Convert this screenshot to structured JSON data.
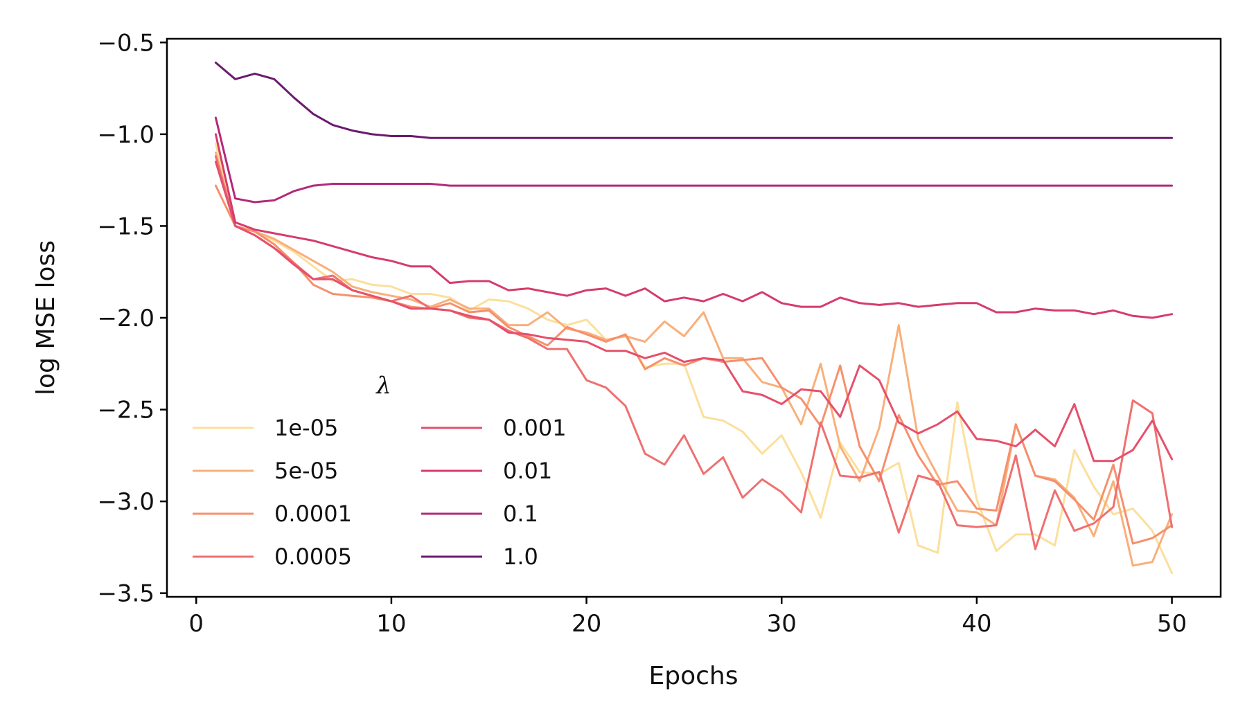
{
  "chart_data": {
    "type": "line",
    "title": "",
    "xlabel": "Epochs",
    "ylabel": "log MSE loss",
    "xlim": [
      -1.5,
      52.5
    ],
    "ylim": [
      -3.52,
      -0.48
    ],
    "xticks": [
      0,
      10,
      20,
      30,
      40,
      50
    ],
    "yticks": [
      -0.5,
      -1.0,
      -1.5,
      -2.0,
      -2.5,
      -3.0,
      -3.5
    ],
    "ytick_labels": [
      "−0.5",
      "−1.0",
      "−1.5",
      "−2.0",
      "−2.5",
      "−3.0",
      "−3.5"
    ],
    "grid": false,
    "legend": {
      "title": "λ",
      "location": "lower-left",
      "columns": 2
    },
    "x": [
      1,
      2,
      3,
      4,
      5,
      6,
      7,
      8,
      9,
      10,
      11,
      12,
      13,
      14,
      15,
      16,
      17,
      18,
      19,
      20,
      21,
      22,
      23,
      24,
      25,
      26,
      27,
      28,
      29,
      30,
      31,
      32,
      33,
      34,
      35,
      36,
      37,
      38,
      39,
      40,
      41,
      42,
      43,
      44,
      45,
      46,
      47,
      48,
      49,
      50
    ],
    "series": [
      {
        "name": "1e-05",
        "color": "#fbdf9c",
        "values": [
          -1.05,
          -1.5,
          -1.53,
          -1.58,
          -1.64,
          -1.72,
          -1.8,
          -1.79,
          -1.82,
          -1.83,
          -1.87,
          -1.87,
          -1.89,
          -1.96,
          -1.9,
          -1.91,
          -1.95,
          -2.01,
          -2.04,
          -2.01,
          -2.12,
          -2.1,
          -2.27,
          -2.25,
          -2.25,
          -2.54,
          -2.56,
          -2.62,
          -2.74,
          -2.64,
          -2.84,
          -3.09,
          -2.68,
          -2.84,
          -2.85,
          -2.79,
          -3.24,
          -3.28,
          -2.46,
          -2.99,
          -3.27,
          -3.18,
          -3.18,
          -3.24,
          -2.72,
          -2.92,
          -3.07,
          -3.04,
          -3.16,
          -3.39
        ]
      },
      {
        "name": "5e-05",
        "color": "#f9af7a",
        "values": [
          -1.1,
          -1.5,
          -1.53,
          -1.57,
          -1.63,
          -1.69,
          -1.75,
          -1.83,
          -1.86,
          -1.88,
          -1.9,
          -1.94,
          -1.9,
          -1.95,
          -1.95,
          -2.04,
          -2.04,
          -1.97,
          -2.06,
          -2.08,
          -2.12,
          -2.1,
          -2.13,
          -2.02,
          -2.1,
          -1.97,
          -2.22,
          -2.22,
          -2.35,
          -2.38,
          -2.58,
          -2.25,
          -2.7,
          -2.89,
          -2.6,
          -2.04,
          -2.66,
          -2.86,
          -3.05,
          -3.06,
          -3.13,
          -2.58,
          -2.86,
          -2.88,
          -2.98,
          -3.19,
          -2.89,
          -3.35,
          -3.33,
          -3.07
        ]
      },
      {
        "name": "0.0001",
        "color": "#f6906c",
        "values": [
          -1.28,
          -1.5,
          -1.53,
          -1.6,
          -1.7,
          -1.82,
          -1.87,
          -1.88,
          -1.89,
          -1.91,
          -1.94,
          -1.95,
          -1.92,
          -1.97,
          -1.96,
          -2.05,
          -2.1,
          -2.15,
          -2.05,
          -2.09,
          -2.13,
          -2.09,
          -2.28,
          -2.22,
          -2.26,
          -2.22,
          -2.24,
          -2.23,
          -2.22,
          -2.38,
          -2.44,
          -2.59,
          -2.26,
          -2.7,
          -2.89,
          -2.53,
          -2.75,
          -2.91,
          -2.89,
          -3.04,
          -3.05,
          -2.58,
          -2.86,
          -2.89,
          -2.99,
          -3.1,
          -2.8,
          -3.23,
          -3.2,
          -3.13
        ]
      },
      {
        "name": "0.0005",
        "color": "#ef7070",
        "values": [
          -1.12,
          -1.5,
          -1.55,
          -1.62,
          -1.7,
          -1.79,
          -1.77,
          -1.85,
          -1.88,
          -1.91,
          -1.88,
          -1.95,
          -1.96,
          -2.0,
          -2.01,
          -2.07,
          -2.11,
          -2.17,
          -2.17,
          -2.34,
          -2.38,
          -2.48,
          -2.74,
          -2.8,
          -2.64,
          -2.85,
          -2.76,
          -2.98,
          -2.88,
          -2.95,
          -3.06,
          -2.57,
          -2.86,
          -2.87,
          -2.84,
          -3.17,
          -2.86,
          -2.89,
          -3.13,
          -3.14,
          -3.13,
          -2.75,
          -3.26,
          -2.94,
          -3.16,
          -3.12,
          -3.03,
          -2.45,
          -2.52,
          -3.14
        ]
      },
      {
        "name": "0.001",
        "color": "#e5506b",
        "values": [
          -1.15,
          -1.5,
          -1.55,
          -1.62,
          -1.71,
          -1.79,
          -1.79,
          -1.85,
          -1.88,
          -1.91,
          -1.95,
          -1.95,
          -1.96,
          -1.99,
          -2.01,
          -2.08,
          -2.09,
          -2.11,
          -2.12,
          -2.13,
          -2.18,
          -2.18,
          -2.22,
          -2.19,
          -2.24,
          -2.22,
          -2.23,
          -2.4,
          -2.42,
          -2.47,
          -2.39,
          -2.4,
          -2.54,
          -2.26,
          -2.34,
          -2.57,
          -2.63,
          -2.58,
          -2.51,
          -2.66,
          -2.67,
          -2.7,
          -2.61,
          -2.7,
          -2.47,
          -2.78,
          -2.78,
          -2.72,
          -2.56,
          -2.77
        ]
      },
      {
        "name": "0.01",
        "color": "#d53c6b",
        "values": [
          -1.0,
          -1.48,
          -1.52,
          -1.54,
          -1.56,
          -1.58,
          -1.61,
          -1.64,
          -1.67,
          -1.69,
          -1.72,
          -1.72,
          -1.81,
          -1.8,
          -1.8,
          -1.85,
          -1.84,
          -1.86,
          -1.88,
          -1.85,
          -1.84,
          -1.88,
          -1.84,
          -1.91,
          -1.89,
          -1.91,
          -1.87,
          -1.91,
          -1.86,
          -1.92,
          -1.94,
          -1.94,
          -1.89,
          -1.92,
          -1.93,
          -1.92,
          -1.94,
          -1.93,
          -1.92,
          -1.92,
          -1.97,
          -1.97,
          -1.95,
          -1.96,
          -1.96,
          -1.98,
          -1.96,
          -1.99,
          -2.0,
          -1.98
        ]
      },
      {
        "name": "0.1",
        "color": "#b3297a",
        "values": [
          -0.91,
          -1.35,
          -1.37,
          -1.36,
          -1.31,
          -1.28,
          -1.27,
          -1.27,
          -1.27,
          -1.27,
          -1.27,
          -1.27,
          -1.28,
          -1.28,
          -1.28,
          -1.28,
          -1.28,
          -1.28,
          -1.28,
          -1.28,
          -1.28,
          -1.28,
          -1.28,
          -1.28,
          -1.28,
          -1.28,
          -1.28,
          -1.28,
          -1.28,
          -1.28,
          -1.28,
          -1.28,
          -1.28,
          -1.28,
          -1.28,
          -1.28,
          -1.28,
          -1.28,
          -1.28,
          -1.28,
          -1.28,
          -1.28,
          -1.28,
          -1.28,
          -1.28,
          -1.28,
          -1.28,
          -1.28,
          -1.28,
          -1.28
        ]
      },
      {
        "name": "1.0",
        "color": "#6b1a6e",
        "values": [
          -0.61,
          -0.7,
          -0.67,
          -0.7,
          -0.8,
          -0.89,
          -0.95,
          -0.98,
          -1.0,
          -1.01,
          -1.01,
          -1.02,
          -1.02,
          -1.02,
          -1.02,
          -1.02,
          -1.02,
          -1.02,
          -1.02,
          -1.02,
          -1.02,
          -1.02,
          -1.02,
          -1.02,
          -1.02,
          -1.02,
          -1.02,
          -1.02,
          -1.02,
          -1.02,
          -1.02,
          -1.02,
          -1.02,
          -1.02,
          -1.02,
          -1.02,
          -1.02,
          -1.02,
          -1.02,
          -1.02,
          -1.02,
          -1.02,
          -1.02,
          -1.02,
          -1.02,
          -1.02,
          -1.02,
          -1.02,
          -1.02,
          -1.02
        ]
      }
    ]
  }
}
